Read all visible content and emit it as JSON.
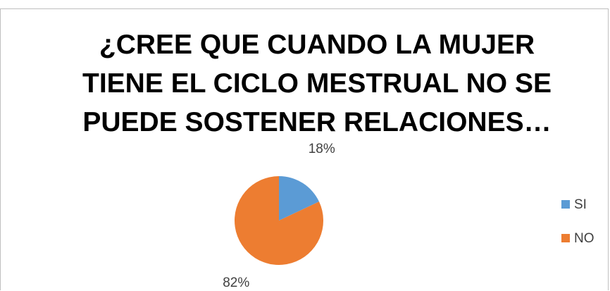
{
  "chart_data": {
    "type": "pie",
    "title": "¿CREE QUE CUANDO LA MUJER TIENE EL CICLO MESTRUAL NO SE PUEDE SOSTENER RELACIONES…",
    "categories": [
      "SI",
      "NO"
    ],
    "values": [
      18,
      82
    ],
    "value_labels": [
      "18%",
      "82%"
    ],
    "colors": [
      "#5b9bd5",
      "#ed7d31"
    ],
    "legend": "right"
  }
}
